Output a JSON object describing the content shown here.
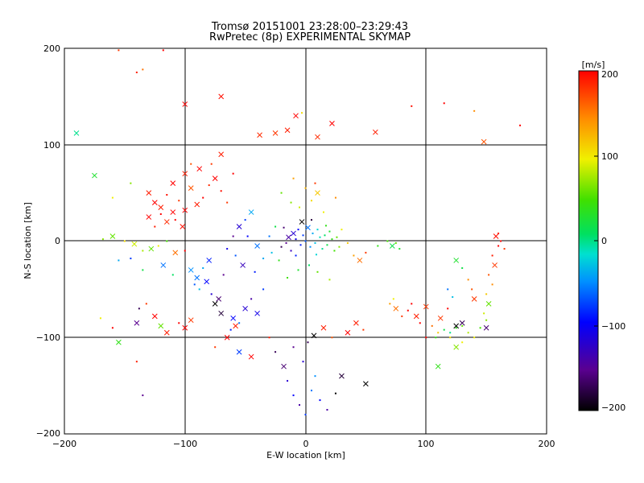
{
  "chart_data": {
    "type": "scatter",
    "title": "Tromsø 20151001 23:28:00–23:29:43",
    "subtitle": "RwPretec (8p) EXPERIMENTAL SKYMAP",
    "xlabel": "E-W location [km]",
    "ylabel": "N-S location [km]",
    "xlim": [
      -200,
      200
    ],
    "ylim": [
      -200,
      200
    ],
    "x_ticks": [
      "−200",
      "−100",
      "0",
      "100",
      "200"
    ],
    "y_ticks": [
      "200",
      "100",
      "0",
      "−100",
      "−200"
    ],
    "grid": true,
    "colorbar": {
      "label": "[m/s]",
      "range": [
        -200,
        200
      ],
      "ticks": [
        "200",
        "100",
        "0",
        "−100",
        "−200"
      ]
    },
    "marker_legend": "points: small echoes, crosses: large echoes",
    "points": [
      [
        -190,
        112,
        0,
        "x"
      ],
      [
        -155,
        198,
        180,
        "c"
      ],
      [
        -140,
        175,
        190,
        "c"
      ],
      [
        -135,
        178,
        160,
        "c"
      ],
      [
        -118,
        198,
        200,
        "c"
      ],
      [
        -100,
        142,
        200,
        "x"
      ],
      [
        -70,
        150,
        195,
        "x"
      ],
      [
        -38,
        110,
        185,
        "x"
      ],
      [
        -25,
        112,
        180,
        "x"
      ],
      [
        -15,
        115,
        190,
        "x"
      ],
      [
        -8,
        130,
        200,
        "x"
      ],
      [
        -3,
        133,
        110,
        "c"
      ],
      [
        10,
        108,
        185,
        "x"
      ],
      [
        22,
        122,
        200,
        "x"
      ],
      [
        58,
        113,
        190,
        "x"
      ],
      [
        88,
        140,
        195,
        "c"
      ],
      [
        115,
        143,
        200,
        "c"
      ],
      [
        140,
        135,
        150,
        "c"
      ],
      [
        148,
        103,
        170,
        "x"
      ],
      [
        178,
        120,
        200,
        "c"
      ],
      [
        -175,
        68,
        30,
        "x"
      ],
      [
        -160,
        45,
        100,
        "c"
      ],
      [
        -145,
        60,
        70,
        "c"
      ],
      [
        -130,
        50,
        190,
        "x"
      ],
      [
        -125,
        40,
        200,
        "x"
      ],
      [
        -120,
        35,
        190,
        "x"
      ],
      [
        -115,
        48,
        195,
        "c"
      ],
      [
        -110,
        30,
        200,
        "x"
      ],
      [
        -105,
        42,
        180,
        "c"
      ],
      [
        -100,
        32,
        200,
        "x"
      ],
      [
        -95,
        55,
        170,
        "x"
      ],
      [
        -90,
        38,
        190,
        "x"
      ],
      [
        -85,
        45,
        200,
        "c"
      ],
      [
        -80,
        58,
        185,
        "c"
      ],
      [
        -75,
        65,
        200,
        "x"
      ],
      [
        -70,
        52,
        195,
        "c"
      ],
      [
        -65,
        40,
        180,
        "c"
      ],
      [
        -110,
        60,
        200,
        "x"
      ],
      [
        -100,
        70,
        190,
        "x"
      ],
      [
        -95,
        80,
        170,
        "c"
      ],
      [
        -88,
        75,
        200,
        "x"
      ],
      [
        -78,
        80,
        180,
        "c"
      ],
      [
        -70,
        90,
        190,
        "x"
      ],
      [
        -60,
        70,
        200,
        "c"
      ],
      [
        -130,
        25,
        200,
        "x"
      ],
      [
        -125,
        15,
        190,
        "c"
      ],
      [
        -120,
        28,
        200,
        "c"
      ],
      [
        -115,
        20,
        185,
        "x"
      ],
      [
        -108,
        22,
        200,
        "c"
      ],
      [
        -102,
        15,
        195,
        "x"
      ],
      [
        -160,
        5,
        60,
        "x"
      ],
      [
        -150,
        0,
        110,
        "c"
      ],
      [
        -142,
        -3,
        90,
        "x"
      ],
      [
        -135,
        -10,
        80,
        "c"
      ],
      [
        -128,
        -8,
        60,
        "x"
      ],
      [
        -122,
        -5,
        100,
        "c"
      ],
      [
        -115,
        0,
        50,
        "c"
      ],
      [
        -108,
        -12,
        160,
        "x"
      ],
      [
        -100,
        -10,
        200,
        "c"
      ],
      [
        -168,
        2,
        70,
        "c"
      ],
      [
        -155,
        -20,
        -40,
        "c"
      ],
      [
        -145,
        -18,
        -80,
        "c"
      ],
      [
        -135,
        -30,
        20,
        "c"
      ],
      [
        -118,
        -25,
        -60,
        "x"
      ],
      [
        -110,
        -35,
        10,
        "c"
      ],
      [
        -95,
        -30,
        -50,
        "x"
      ],
      [
        -90,
        -38,
        -60,
        "x"
      ],
      [
        -85,
        -28,
        -40,
        "c"
      ],
      [
        -80,
        -20,
        -90,
        "x"
      ],
      [
        -92,
        -45,
        -70,
        "c"
      ],
      [
        -88,
        -50,
        -30,
        "c"
      ],
      [
        -82,
        -42,
        -100,
        "x"
      ],
      [
        -78,
        -55,
        -120,
        "c"
      ],
      [
        -72,
        -60,
        -160,
        "x"
      ],
      [
        -68,
        -35,
        -150,
        "c"
      ],
      [
        -75,
        -65,
        -200,
        "x"
      ],
      [
        -70,
        -75,
        -180,
        "x"
      ],
      [
        -60,
        -80,
        -100,
        "x"
      ],
      [
        -55,
        -85,
        -60,
        "c"
      ],
      [
        -50,
        -70,
        -120,
        "x"
      ],
      [
        -45,
        -60,
        -140,
        "c"
      ],
      [
        -40,
        -75,
        -110,
        "x"
      ],
      [
        -35,
        -50,
        -80,
        "c"
      ],
      [
        -62,
        -92,
        -90,
        "c"
      ],
      [
        -58,
        -88,
        190,
        "x"
      ],
      [
        -65,
        -100,
        200,
        "x"
      ],
      [
        -75,
        -110,
        180,
        "c"
      ],
      [
        -95,
        -82,
        180,
        "x"
      ],
      [
        -105,
        -85,
        200,
        "c"
      ],
      [
        -115,
        -95,
        190,
        "x"
      ],
      [
        -140,
        -85,
        -150,
        "x"
      ],
      [
        -138,
        -70,
        -170,
        "c"
      ],
      [
        -132,
        -65,
        180,
        "c"
      ],
      [
        -125,
        -78,
        200,
        "x"
      ],
      [
        -120,
        -88,
        60,
        "x"
      ],
      [
        -155,
        -105,
        40,
        "x"
      ],
      [
        -140,
        -125,
        190,
        "c"
      ],
      [
        -160,
        -90,
        200,
        "c"
      ],
      [
        -170,
        -80,
        100,
        "c"
      ],
      [
        -100,
        -90,
        200,
        "x"
      ],
      [
        -55,
        -115,
        -80,
        "x"
      ],
      [
        -45,
        -120,
        200,
        "x"
      ],
      [
        -30,
        -100,
        190,
        "c"
      ],
      [
        -25,
        -115,
        -170,
        "c"
      ],
      [
        -18,
        -130,
        -160,
        "x"
      ],
      [
        -15,
        -145,
        -120,
        "c"
      ],
      [
        -10,
        -160,
        -100,
        "c"
      ],
      [
        -5,
        -170,
        -140,
        "c"
      ],
      [
        0,
        -180,
        -80,
        "c"
      ],
      [
        5,
        -155,
        -60,
        "c"
      ],
      [
        8,
        -140,
        -50,
        "c"
      ],
      [
        12,
        -165,
        -100,
        "c"
      ],
      [
        18,
        -175,
        -140,
        "c"
      ],
      [
        25,
        -158,
        -200,
        "c"
      ],
      [
        30,
        -140,
        -180,
        "x"
      ],
      [
        50,
        -148,
        -200,
        "x"
      ],
      [
        -2,
        -125,
        -120,
        "c"
      ],
      [
        -10,
        -110,
        -150,
        "c"
      ],
      [
        2,
        -105,
        -170,
        "c"
      ],
      [
        7,
        -98,
        -200,
        "x"
      ],
      [
        15,
        -90,
        190,
        "x"
      ],
      [
        22,
        -100,
        170,
        "c"
      ],
      [
        35,
        -95,
        200,
        "x"
      ],
      [
        42,
        -85,
        190,
        "x"
      ],
      [
        48,
        -92,
        180,
        "c"
      ],
      [
        -10,
        8,
        -120,
        "x"
      ],
      [
        -8,
        2,
        -110,
        "c"
      ],
      [
        -6,
        12,
        -100,
        "c"
      ],
      [
        -4,
        -4,
        -90,
        "c"
      ],
      [
        -2,
        6,
        -80,
        "c"
      ],
      [
        0,
        0,
        -70,
        "c"
      ],
      [
        2,
        14,
        -60,
        "x"
      ],
      [
        4,
        -6,
        -50,
        "c"
      ],
      [
        6,
        8,
        -40,
        "c"
      ],
      [
        8,
        -2,
        -30,
        "c"
      ],
      [
        10,
        12,
        -20,
        "c"
      ],
      [
        12,
        4,
        -10,
        "c"
      ],
      [
        14,
        -8,
        0,
        "c"
      ],
      [
        16,
        6,
        10,
        "c"
      ],
      [
        18,
        -4,
        20,
        "c"
      ],
      [
        20,
        10,
        30,
        "c"
      ],
      [
        22,
        2,
        40,
        "c"
      ],
      [
        24,
        -10,
        50,
        "c"
      ],
      [
        26,
        4,
        60,
        "c"
      ],
      [
        28,
        -6,
        70,
        "c"
      ],
      [
        -12,
        -10,
        -130,
        "c"
      ],
      [
        -14,
        4,
        -140,
        "x"
      ],
      [
        -16,
        -2,
        -150,
        "c"
      ],
      [
        -18,
        14,
        -160,
        "c"
      ],
      [
        -20,
        -6,
        -170,
        "c"
      ],
      [
        -3,
        20,
        -200,
        "x"
      ],
      [
        5,
        22,
        -180,
        "c"
      ],
      [
        -8,
        -15,
        -90,
        "c"
      ],
      [
        9,
        -14,
        -20,
        "c"
      ],
      [
        17,
        16,
        40,
        "c"
      ],
      [
        30,
        12,
        100,
        "c"
      ],
      [
        35,
        -2,
        120,
        "c"
      ],
      [
        40,
        -15,
        140,
        "c"
      ],
      [
        45,
        -20,
        160,
        "x"
      ],
      [
        50,
        -12,
        180,
        "c"
      ],
      [
        -30,
        5,
        -60,
        "c"
      ],
      [
        -28,
        -12,
        -30,
        "c"
      ],
      [
        -25,
        15,
        20,
        "c"
      ],
      [
        -22,
        -20,
        40,
        "c"
      ],
      [
        -35,
        -18,
        -40,
        "c"
      ],
      [
        3,
        -25,
        10,
        "c"
      ],
      [
        -6,
        -30,
        30,
        "c"
      ],
      [
        10,
        -32,
        60,
        "c"
      ],
      [
        -15,
        -38,
        50,
        "c"
      ],
      [
        20,
        -40,
        80,
        "c"
      ],
      [
        -5,
        35,
        90,
        "c"
      ],
      [
        5,
        42,
        110,
        "c"
      ],
      [
        10,
        50,
        120,
        "x"
      ],
      [
        15,
        30,
        100,
        "c"
      ],
      [
        -12,
        40,
        70,
        "c"
      ],
      [
        -20,
        50,
        60,
        "c"
      ],
      [
        25,
        45,
        150,
        "c"
      ],
      [
        8,
        60,
        180,
        "c"
      ],
      [
        -10,
        65,
        140,
        "c"
      ],
      [
        0,
        55,
        130,
        "c"
      ],
      [
        -45,
        30,
        -40,
        "x"
      ],
      [
        -50,
        22,
        -80,
        "c"
      ],
      [
        -55,
        15,
        -120,
        "x"
      ],
      [
        -48,
        5,
        -100,
        "c"
      ],
      [
        -40,
        -5,
        -60,
        "x"
      ],
      [
        -60,
        5,
        -150,
        "c"
      ],
      [
        -65,
        -8,
        -110,
        "c"
      ],
      [
        -52,
        -25,
        -130,
        "x"
      ],
      [
        -42,
        -32,
        -90,
        "c"
      ],
      [
        -58,
        -15,
        -70,
        "c"
      ],
      [
        75,
        -2,
        60,
        "c"
      ],
      [
        72,
        -5,
        20,
        "x"
      ],
      [
        78,
        -8,
        30,
        "c"
      ],
      [
        68,
        0,
        50,
        "c"
      ],
      [
        60,
        -5,
        40,
        "c"
      ],
      [
        73,
        -60,
        100,
        "c"
      ],
      [
        70,
        -65,
        140,
        "c"
      ],
      [
        75,
        -70,
        160,
        "x"
      ],
      [
        80,
        -78,
        180,
        "c"
      ],
      [
        85,
        -72,
        200,
        "c"
      ],
      [
        92,
        -78,
        190,
        "x"
      ],
      [
        88,
        -65,
        200,
        "c"
      ],
      [
        95,
        -85,
        200,
        "c"
      ],
      [
        100,
        -68,
        180,
        "x"
      ],
      [
        105,
        -88,
        160,
        "c"
      ],
      [
        110,
        -95,
        120,
        "c"
      ],
      [
        108,
        -100,
        40,
        "c"
      ],
      [
        115,
        -92,
        20,
        "c"
      ],
      [
        120,
        -95,
        0,
        "c"
      ],
      [
        125,
        -90,
        40,
        "c"
      ],
      [
        130,
        -88,
        60,
        "c"
      ],
      [
        135,
        -95,
        80,
        "c"
      ],
      [
        140,
        -100,
        100,
        "c"
      ],
      [
        125,
        -88,
        -200,
        "x"
      ],
      [
        130,
        -85,
        -170,
        "x"
      ],
      [
        145,
        -90,
        50,
        "c"
      ],
      [
        150,
        -90,
        -160,
        "x"
      ],
      [
        150,
        -82,
        70,
        "c"
      ],
      [
        148,
        -75,
        90,
        "c"
      ],
      [
        152,
        -65,
        60,
        "x"
      ],
      [
        150,
        -55,
        120,
        "c"
      ],
      [
        155,
        -45,
        150,
        "c"
      ],
      [
        152,
        -35,
        170,
        "c"
      ],
      [
        157,
        -25,
        180,
        "x"
      ],
      [
        155,
        -15,
        190,
        "c"
      ],
      [
        160,
        -5,
        200,
        "c"
      ],
      [
        158,
        5,
        195,
        "x"
      ],
      [
        162,
        0,
        200,
        "c"
      ],
      [
        165,
        -8,
        180,
        "c"
      ],
      [
        160,
        8,
        190,
        "c"
      ],
      [
        125,
        -20,
        30,
        "x"
      ],
      [
        130,
        -28,
        20,
        "c"
      ],
      [
        135,
        -40,
        150,
        "c"
      ],
      [
        138,
        -50,
        170,
        "c"
      ],
      [
        140,
        -60,
        180,
        "x"
      ],
      [
        118,
        -50,
        -60,
        "c"
      ],
      [
        122,
        -58,
        -30,
        "c"
      ],
      [
        118,
        -70,
        200,
        "c"
      ],
      [
        112,
        -80,
        180,
        "x"
      ],
      [
        100,
        -100,
        200,
        "c"
      ],
      [
        -135,
        -160,
        -150,
        "c"
      ],
      [
        125,
        -110,
        70,
        "x"
      ],
      [
        120,
        -100,
        110,
        "c"
      ],
      [
        110,
        -130,
        40,
        "x"
      ],
      [
        130,
        -105,
        100,
        "c"
      ]
    ]
  }
}
